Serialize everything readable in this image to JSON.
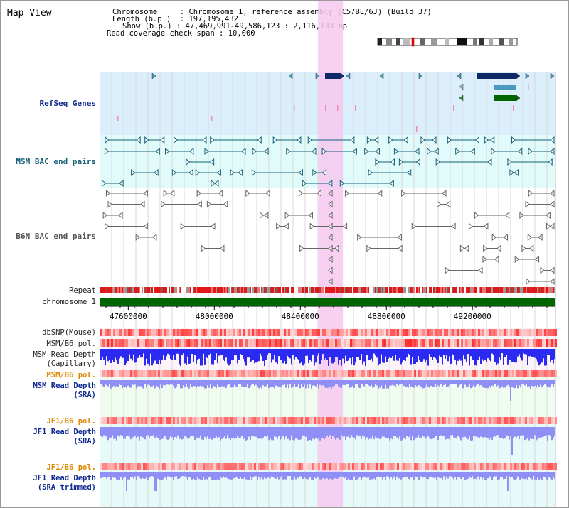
{
  "app_title": "Map View",
  "info": {
    "chromosome_label": "Chromosome",
    "chromosome_value": "Chromosome 1, reference assembly (C57BL/6J) (Build 37)",
    "length_label": "Length (b.p.)",
    "length_value": "197,195,432",
    "show_label": "Show (b.p.)",
    "show_value": "47,469,991-49,586,123 : 2,116,133 bp",
    "coverage_label": "Read coverage check span",
    "coverage_value": "10,000"
  },
  "tracks": {
    "refseq": "RefSeq Genes",
    "msm_bac": "MSM BAC end pairs",
    "b6n_bac": "B6N BAC end pairs",
    "repeat": "Repeat",
    "chromosome": "chromosome 1",
    "dbsnp": "dbSNP(Mouse)",
    "msm_b6_pol_1": "MSM/B6 pol.",
    "msm_depth_cap_1": "MSM Read Depth",
    "msm_depth_cap_2": "(Capillary)",
    "msm_b6_pol_2": "MSM/B6 pol.",
    "msm_depth_sra_1": "MSM Read Depth",
    "msm_depth_sra_2": "(SRA)",
    "jf1_b6_pol_1": "JF1/B6 pol.",
    "jf1_depth_sra_1": "JF1 Read Depth",
    "jf1_depth_sra_2": "(SRA)",
    "jf1_b6_pol_2": "JF1/B6 pol.",
    "jf1_depth_trim_1": "JF1 Read Depth",
    "jf1_depth_trim_2": "(SRA trimmed)"
  },
  "axis": {
    "start_bp": 47469991,
    "end_bp": 49586123,
    "ticks": [
      "47600000",
      "48000000",
      "48400000",
      "48800000",
      "49200000"
    ]
  },
  "highlight_range_bp": [
    48482000,
    48598000
  ],
  "colors": {
    "refseq_bg": "#dbeefb",
    "msm_bac_bg": "#e1fbfb",
    "b6n_bg": "#ffffff",
    "highlight": "#f6c8f0",
    "gene_dark": "#0d2a66",
    "gene_mid": "#4a9ac0",
    "gene_green": "#006400",
    "bac_teal": "#17617a",
    "bac_gray": "#666666",
    "chromosome_bar": "#006400",
    "depth_capillary": "#2a2af0",
    "depth_sra": "#8f8ff5",
    "label_blue": "#102a90",
    "label_orange": "#e08a00",
    "label_black": "#222222"
  }
}
